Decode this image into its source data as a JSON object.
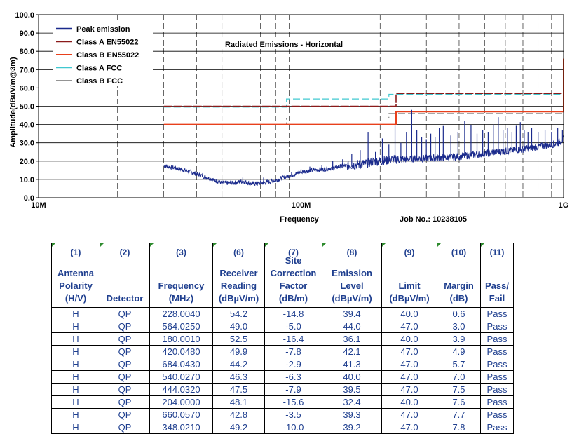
{
  "chart_data": {
    "type": "line",
    "title": "Radiated Emissions - Horizontal",
    "xlabel": "Frequency",
    "ylabel": "Amplitude(dBuV/m@3m)",
    "xscale": "log",
    "xlim_mhz": [
      10,
      1000
    ],
    "ylim": [
      0,
      100
    ],
    "y_ticks": [
      "0.0",
      "10.0",
      "20.0",
      "30.0",
      "40.0",
      "50.0",
      "60.0",
      "70.0",
      "80.0",
      "90.0",
      "100.0"
    ],
    "x_tick_labels": [
      {
        "mhz": 10,
        "label": "10M"
      },
      {
        "mhz": 100,
        "label": "100M"
      },
      {
        "mhz": 1000,
        "label": "1G"
      }
    ],
    "grid": true,
    "legend_position": "top-left",
    "job_label": "Job No.: 10238105",
    "series": [
      {
        "name": "Peak emission",
        "color": "#1a2a8c",
        "x": [
          30,
          35,
          40,
          45,
          50,
          55,
          60,
          65,
          70,
          75,
          80,
          90,
          100,
          110,
          120,
          130,
          140,
          150,
          160,
          170,
          180,
          190,
          200,
          228,
          250,
          280,
          300,
          350,
          400,
          450,
          500,
          550,
          600,
          650,
          700,
          750,
          800,
          850,
          900,
          950,
          1000
        ],
        "y": [
          17.5,
          15.5,
          13,
          10.5,
          8,
          8,
          9,
          7.5,
          8,
          8.5,
          9.5,
          12,
          14,
          15,
          15.5,
          16,
          17,
          17.5,
          18,
          18.5,
          19,
          20,
          20,
          21,
          21,
          21.5,
          21.5,
          22,
          22.5,
          23.5,
          24,
          25,
          25.5,
          26,
          26.5,
          27,
          28,
          28.5,
          29,
          30,
          32
        ]
      },
      {
        "name": "Class A EN55022",
        "color": "#8b1a1a",
        "x": [
          30,
          230,
          230,
          1000
        ],
        "y": [
          50,
          50,
          57,
          57
        ]
      },
      {
        "name": "Class B EN55022",
        "color": "#e8401c",
        "x": [
          30,
          230,
          230,
          1000,
          1000
        ],
        "y": [
          40,
          40,
          47,
          47,
          76
        ]
      },
      {
        "name": "Class A FCC",
        "color": "#40c8d0",
        "x": [
          30,
          88,
          88,
          216,
          216,
          1000
        ],
        "y": [
          49.5,
          49.5,
          54,
          54,
          56.5,
          56.5
        ]
      },
      {
        "name": "Class B FCC",
        "color": "#707070",
        "x": [
          30,
          88,
          88,
          216,
          216,
          1000
        ],
        "y": [
          40,
          40,
          43.5,
          43.5,
          46,
          46
        ]
      }
    ],
    "spike_peaks": [
      {
        "x": 60,
        "y": 11
      },
      {
        "x": 72,
        "y": 11
      },
      {
        "x": 92,
        "y": 14
      },
      {
        "x": 100,
        "y": 15.5
      },
      {
        "x": 108,
        "y": 17
      },
      {
        "x": 120,
        "y": 18
      },
      {
        "x": 132,
        "y": 20
      },
      {
        "x": 144,
        "y": 21
      },
      {
        "x": 156,
        "y": 24
      },
      {
        "x": 168,
        "y": 26
      },
      {
        "x": 180,
        "y": 36
      },
      {
        "x": 192,
        "y": 25
      },
      {
        "x": 204,
        "y": 32.4
      },
      {
        "x": 216,
        "y": 29
      },
      {
        "x": 228,
        "y": 39.4
      },
      {
        "x": 240,
        "y": 30
      },
      {
        "x": 252,
        "y": 36
      },
      {
        "x": 264,
        "y": 48
      },
      {
        "x": 276,
        "y": 37
      },
      {
        "x": 288,
        "y": 33
      },
      {
        "x": 300,
        "y": 32
      },
      {
        "x": 312,
        "y": 35
      },
      {
        "x": 324,
        "y": 33
      },
      {
        "x": 336,
        "y": 38
      },
      {
        "x": 348,
        "y": 39.2
      },
      {
        "x": 372,
        "y": 34
      },
      {
        "x": 396,
        "y": 36
      },
      {
        "x": 420,
        "y": 42.1
      },
      {
        "x": 444,
        "y": 39.5
      },
      {
        "x": 468,
        "y": 35
      },
      {
        "x": 492,
        "y": 37
      },
      {
        "x": 516,
        "y": 36
      },
      {
        "x": 540,
        "y": 40
      },
      {
        "x": 564,
        "y": 44
      },
      {
        "x": 588,
        "y": 37
      },
      {
        "x": 612,
        "y": 38
      },
      {
        "x": 636,
        "y": 36
      },
      {
        "x": 660,
        "y": 39.3
      },
      {
        "x": 684,
        "y": 41.3
      },
      {
        "x": 708,
        "y": 37
      },
      {
        "x": 732,
        "y": 36
      },
      {
        "x": 756,
        "y": 38
      },
      {
        "x": 800,
        "y": 36
      },
      {
        "x": 850,
        "y": 37
      },
      {
        "x": 900,
        "y": 36
      },
      {
        "x": 950,
        "y": 38
      },
      {
        "x": 990,
        "y": 37
      }
    ]
  },
  "table": {
    "col_numbers": [
      "(1)",
      "(2)",
      "(3)",
      "(6)",
      "(7)",
      "(8)",
      "(9)",
      "(10)",
      "(11)"
    ],
    "col_labels": [
      [
        "Antenna",
        "Polarity",
        "(H/V)"
      ],
      [
        "Detector"
      ],
      [
        "Frequency",
        "(MHz)"
      ],
      [
        "Receiver",
        "Reading",
        "(dBµV/m)"
      ],
      [
        "Site",
        "Correction",
        "Factor",
        "(dB/m)"
      ],
      [
        "Emission",
        "Level",
        "(dBµV/m)"
      ],
      [
        "Limit",
        "(dBµV/m)"
      ],
      [
        "Margin",
        "(dB)"
      ],
      [
        "Pass/",
        "Fail"
      ]
    ],
    "rows": [
      [
        "H",
        "QP",
        "228.0040",
        "54.2",
        "-14.8",
        "39.4",
        "40.0",
        "0.6",
        "Pass"
      ],
      [
        "H",
        "QP",
        "564.0250",
        "49.0",
        "-5.0",
        "44.0",
        "47.0",
        "3.0",
        "Pass"
      ],
      [
        "H",
        "QP",
        "180.0010",
        "52.5",
        "-16.4",
        "36.1",
        "40.0",
        "3.9",
        "Pass"
      ],
      [
        "H",
        "QP",
        "420.0480",
        "49.9",
        "-7.8",
        "42.1",
        "47.0",
        "4.9",
        "Pass"
      ],
      [
        "H",
        "QP",
        "684.0430",
        "44.2",
        "-2.9",
        "41.3",
        "47.0",
        "5.7",
        "Pass"
      ],
      [
        "H",
        "QP",
        "540.0270",
        "46.3",
        "-6.3",
        "40.0",
        "47.0",
        "7.0",
        "Pass"
      ],
      [
        "H",
        "QP",
        "444.0320",
        "47.5",
        "-7.9",
        "39.5",
        "47.0",
        "7.5",
        "Pass"
      ],
      [
        "H",
        "QP",
        "204.0000",
        "48.1",
        "-15.6",
        "32.4",
        "40.0",
        "7.6",
        "Pass"
      ],
      [
        "H",
        "QP",
        "660.0570",
        "42.8",
        "-3.5",
        "39.3",
        "47.0",
        "7.7",
        "Pass"
      ],
      [
        "H",
        "QP",
        "348.0210",
        "49.2",
        "-10.0",
        "39.2",
        "47.0",
        "7.8",
        "Pass"
      ]
    ]
  }
}
